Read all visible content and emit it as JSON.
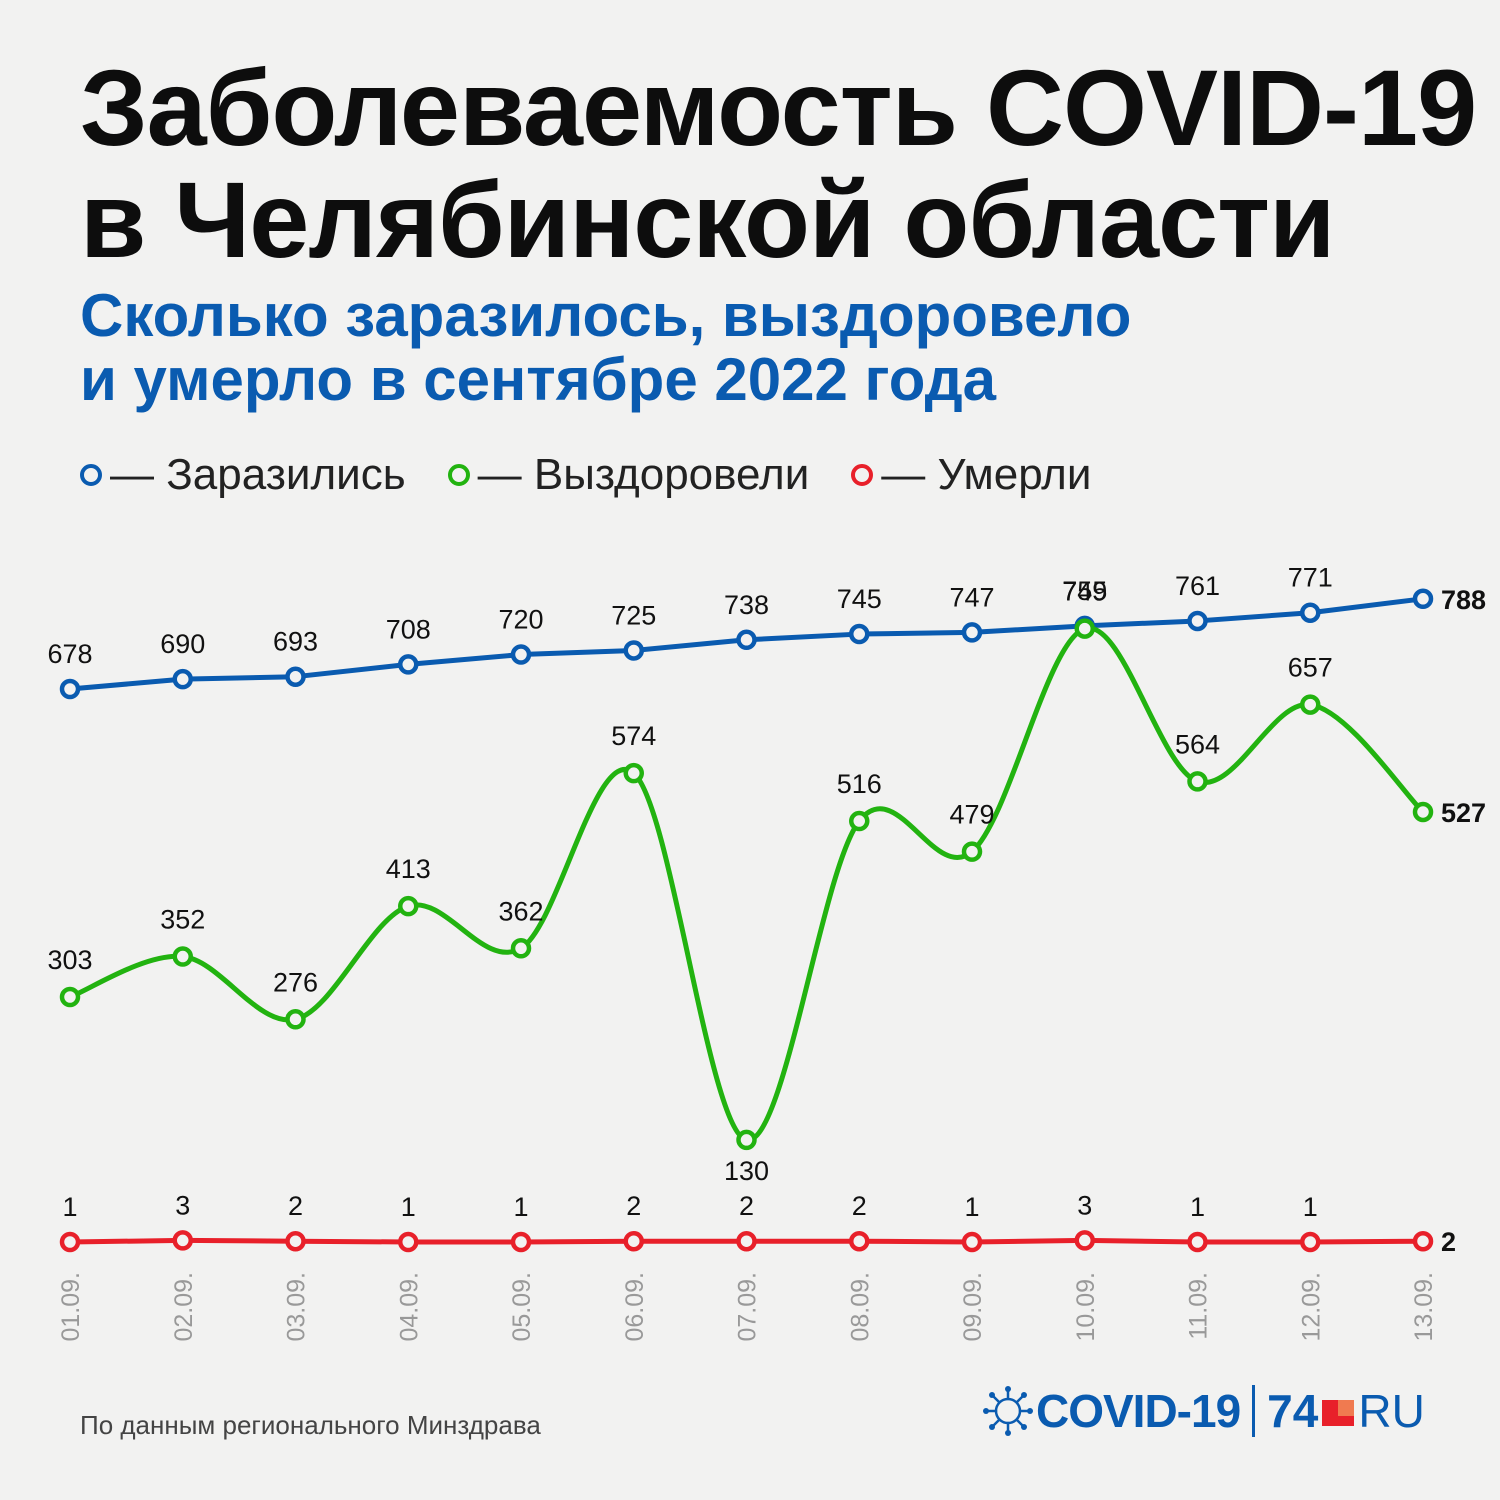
{
  "title": [
    "Заболеваемость COVID-19",
    "в Челябинской области"
  ],
  "subtitle": [
    "Сколько заразилось, выздоровело",
    "и умерло в сентябре 2022 года"
  ],
  "legend": [
    {
      "label": "— Заразились",
      "color": "#0a5bb0"
    },
    {
      "label": "— Выздоровели",
      "color": "#22b310"
    },
    {
      "label": "— Умерли",
      "color": "#e8202a"
    }
  ],
  "source": "По данным регионального Минздрава",
  "brand": {
    "covid": "COVID-19",
    "num": "74",
    "ru": "RU"
  },
  "chart_data": {
    "type": "line",
    "x": [
      "01.09.",
      "02.09.",
      "03.09.",
      "04.09.",
      "05.09.",
      "06.09.",
      "07.09.",
      "08.09.",
      "09.09.",
      "10.09.",
      "11.09.",
      "12.09.",
      "13.09."
    ],
    "series": [
      {
        "name": "Заразились",
        "color": "#0a5bb0",
        "values": [
          678,
          690,
          693,
          708,
          720,
          725,
          738,
          745,
          747,
          755,
          761,
          771,
          788
        ]
      },
      {
        "name": "Выздоровели",
        "color": "#22b310",
        "values": [
          303,
          352,
          276,
          413,
          362,
          574,
          130,
          516,
          479,
          749,
          564,
          657,
          527
        ]
      },
      {
        "name": "Умерли",
        "color": "#e8202a",
        "values": [
          1,
          3,
          2,
          1,
          1,
          2,
          2,
          2,
          1,
          3,
          1,
          1,
          2
        ]
      }
    ],
    "data_labels": true,
    "grid": false,
    "legend_position": "top-left"
  }
}
